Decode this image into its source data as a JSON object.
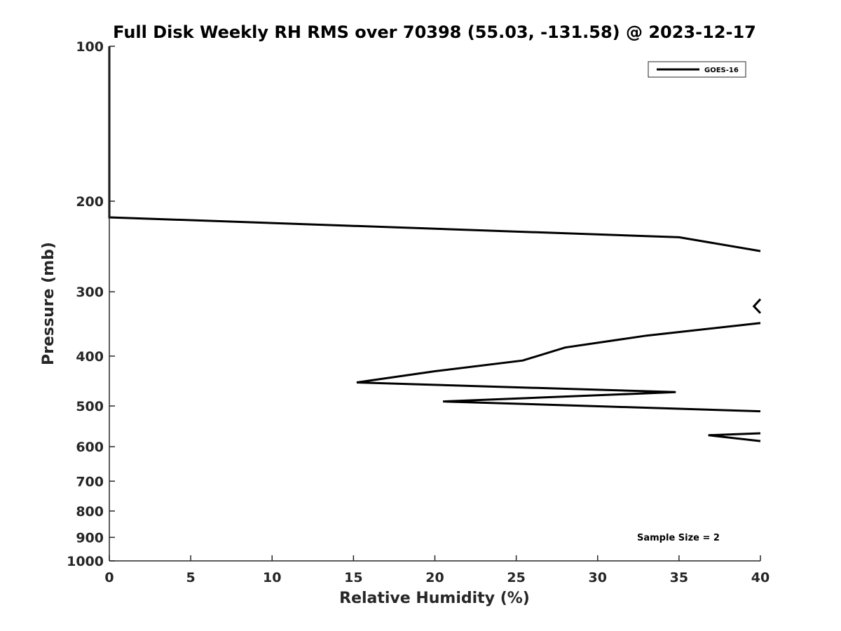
{
  "chart_data": {
    "type": "line",
    "title": "Full Disk Weekly RH RMS over 70398 (55.03, -131.58) @ 2023-12-17",
    "xlabel": "Relative Humidity (%)",
    "ylabel": "Pressure (mb)",
    "xlim": [
      0,
      40
    ],
    "ylim": [
      100,
      1000
    ],
    "y_scale": "log",
    "y_reversed": true,
    "grid": false,
    "legend_position": "top-right",
    "x_ticks": [
      0,
      5,
      10,
      15,
      20,
      25,
      30,
      35,
      40
    ],
    "y_ticks": [
      100,
      200,
      300,
      400,
      500,
      600,
      700,
      800,
      900,
      1000
    ],
    "annotation": "Sample Size = 2",
    "series": [
      {
        "name": "GOES-16",
        "color": "#000000",
        "segments": [
          [
            {
              "x": 0,
              "y": 100
            },
            {
              "x": 0,
              "y": 150
            },
            {
              "x": 0,
              "y": 200
            },
            {
              "x": 0,
              "y": 215
            },
            {
              "x": 35,
              "y": 235
            },
            {
              "x": 40,
              "y": 250
            }
          ],
          [
            {
              "x": 40,
              "y": 330
            },
            {
              "x": 39.6,
              "y": 320
            },
            {
              "x": 40,
              "y": 310
            }
          ],
          [
            {
              "x": 40,
              "y": 345
            },
            {
              "x": 33,
              "y": 365
            },
            {
              "x": 28,
              "y": 385
            },
            {
              "x": 25.4,
              "y": 408
            },
            {
              "x": 20,
              "y": 428
            },
            {
              "x": 15.2,
              "y": 450
            },
            {
              "x": 34.8,
              "y": 470
            },
            {
              "x": 20.5,
              "y": 490
            },
            {
              "x": 40,
              "y": 512
            }
          ],
          [
            {
              "x": 40,
              "y": 565
            },
            {
              "x": 36.8,
              "y": 570
            },
            {
              "x": 40,
              "y": 585
            }
          ]
        ]
      }
    ]
  }
}
